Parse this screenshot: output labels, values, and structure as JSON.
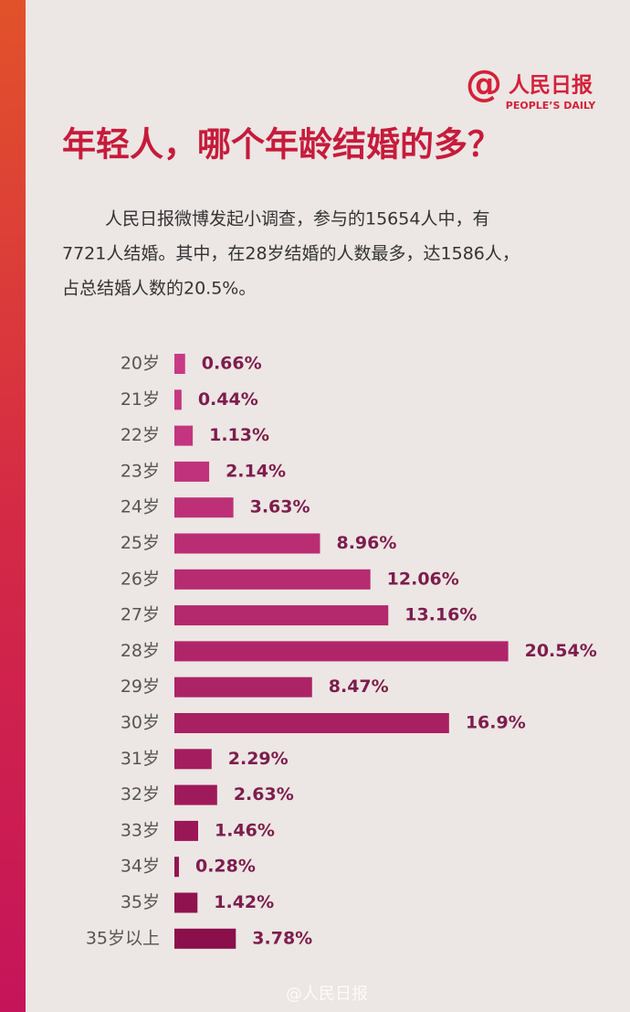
{
  "chart_data": {
    "type": "bar",
    "orientation": "horizontal",
    "logo": {
      "mark": "@",
      "name": "人民日报",
      "english": "PEOPLE’S DAILY"
    },
    "title": "年轻人，哪个年龄结婚的多？",
    "description": [
      "人民日报微博发起小调查，参与的15654人中，有",
      "7721人结婚。其中，在28岁结婚的人数最多，达1586人，",
      "占总结婚人数的20.5%。"
    ],
    "categories": [
      "20岁",
      "21岁",
      "22岁",
      "23岁",
      "24岁",
      "25岁",
      "26岁",
      "27岁",
      "28岁",
      "29岁",
      "30岁",
      "31岁",
      "32岁",
      "33岁",
      "34岁",
      "35岁",
      "35岁以上"
    ],
    "values": [
      0.66,
      0.44,
      1.13,
      2.14,
      3.63,
      8.96,
      12.06,
      13.16,
      20.54,
      8.47,
      16.9,
      2.29,
      2.63,
      1.46,
      0.28,
      1.42,
      3.78
    ],
    "value_labels": [
      "0.66%",
      "0.44%",
      "1.13%",
      "2.14%",
      "3.63%",
      "8.96%",
      "12.06%",
      "13.16%",
      "20.54%",
      "8.47%",
      "16.9%",
      "2.29%",
      "2.63%",
      "1.46%",
      "0.28%",
      "1.42%",
      "3.78%"
    ],
    "colors": [
      "#c93a86",
      "#c63782",
      "#c3357f",
      "#c0327b",
      "#bd3078",
      "#ba2d74",
      "#b72b71",
      "#b4286d",
      "#b0256a",
      "#ac2366",
      "#a82062",
      "#a41d5e",
      "#9f1a5a",
      "#9a1756",
      "#951452",
      "#90124e",
      "#8b0f4a"
    ],
    "watermark": "@人民日报"
  }
}
